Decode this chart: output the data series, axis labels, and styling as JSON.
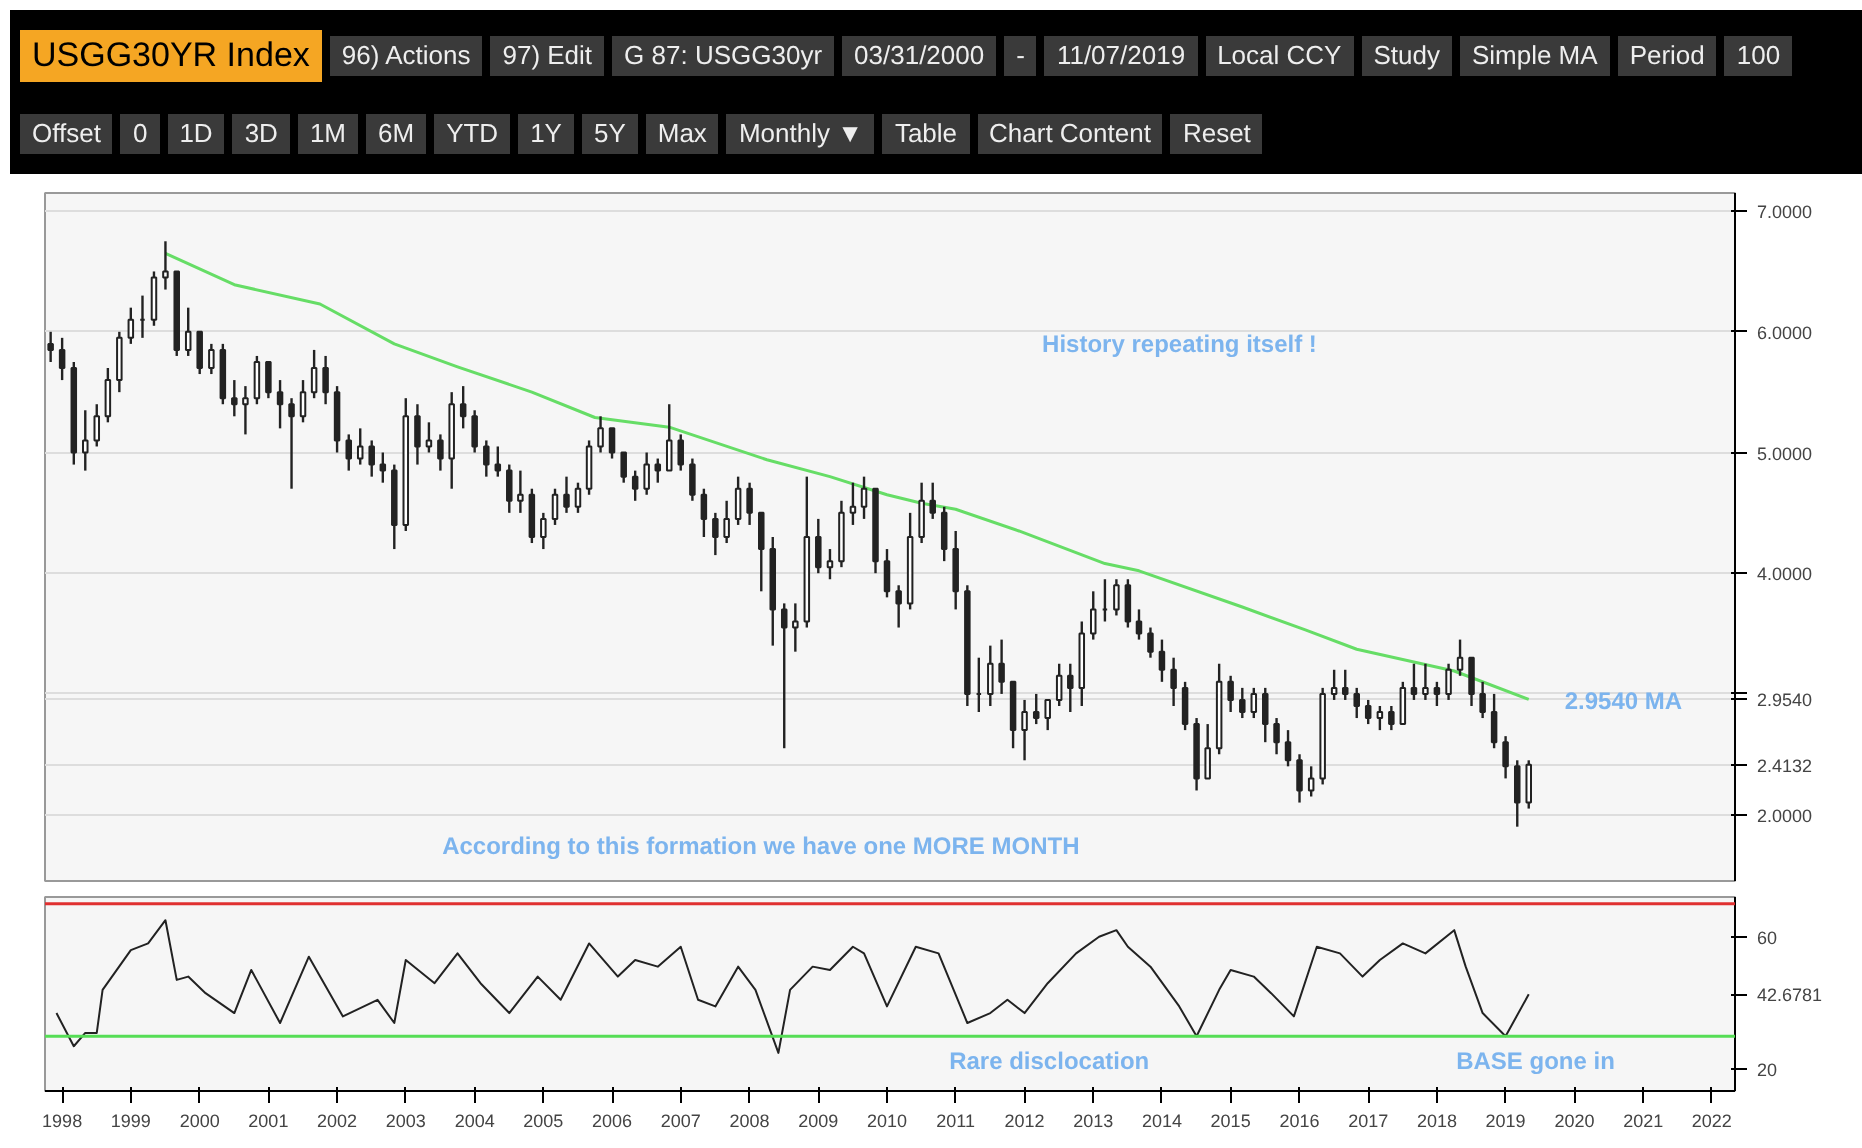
{
  "chart_data": [
    {
      "type": "other",
      "title": "USGG30YR Index",
      "annotations": [
        "96) Actions",
        "97) Edit",
        "G 87: USGG30yr",
        "03/31/2000",
        "-",
        "11/07/2019",
        "Local CCY",
        "Study",
        "Simple MA",
        "Period",
        "100",
        "Offset",
        "0",
        "1D",
        "3D",
        "1M",
        "6M",
        "YTD",
        "1Y",
        "5Y",
        "Max",
        "Monthly ▼",
        "Table",
        "Chart Content",
        "Reset"
      ]
    },
    {
      "type": "candlestick",
      "xlim": [
        "1998-04",
        "2022-11"
      ],
      "ylim": [
        1.45,
        7.15
      ],
      "yticks": [
        {
          "value": 7,
          "label": "7.0000"
        },
        {
          "value": 6,
          "label": "6.0000"
        },
        {
          "value": 5,
          "label": "5.0000"
        },
        {
          "value": 4,
          "label": "4.0000"
        },
        {
          "value": 3,
          "label": null
        },
        {
          "value": 2.954,
          "label": "2.9540"
        },
        {
          "value": 2.4132,
          "label": "2.4132"
        },
        {
          "value": 2,
          "label": "2.0000"
        }
      ],
      "tick_labels": "y",
      "grid": "y",
      "x": [
        "1998-05",
        "1998-07",
        "1998-09",
        "1998-11",
        "1999-01",
        "1999-03",
        "1999-05",
        "1999-07",
        "1999-09",
        "1999-11",
        "2000-01",
        "2000-03",
        "2000-05",
        "2000-07",
        "2000-09",
        "2000-11",
        "2001-01",
        "2001-03",
        "2001-05",
        "2001-07",
        "2001-09",
        "2001-11",
        "2002-01",
        "2002-03",
        "2002-05",
        "2002-07",
        "2002-09",
        "2002-11",
        "2003-01",
        "2003-03",
        "2003-05",
        "2003-07",
        "2003-09",
        "2003-11",
        "2004-01",
        "2004-03",
        "2004-05",
        "2004-07",
        "2004-09",
        "2004-11",
        "2005-01",
        "2005-03",
        "2005-05",
        "2005-07",
        "2005-09",
        "2005-11",
        "2006-01",
        "2006-03",
        "2006-05",
        "2006-07",
        "2006-09",
        "2006-11",
        "2007-01",
        "2007-03",
        "2007-05",
        "2007-07",
        "2007-09",
        "2007-11",
        "2008-01",
        "2008-03",
        "2008-05",
        "2008-07",
        "2008-09",
        "2008-11",
        "2009-01",
        "2009-03",
        "2009-05",
        "2009-07",
        "2009-09",
        "2009-11",
        "2010-01",
        "2010-03",
        "2010-05",
        "2010-07",
        "2010-09",
        "2010-11",
        "2011-01",
        "2011-03",
        "2011-05",
        "2011-07",
        "2011-09",
        "2011-11",
        "2012-01",
        "2012-03",
        "2012-05",
        "2012-07",
        "2012-09",
        "2012-11",
        "2013-01",
        "2013-03",
        "2013-05",
        "2013-07",
        "2013-09",
        "2013-11",
        "2014-01",
        "2014-03",
        "2014-05",
        "2014-07",
        "2014-09",
        "2014-11",
        "2015-01",
        "2015-03",
        "2015-05",
        "2015-07",
        "2015-09",
        "2015-11",
        "2016-01",
        "2016-03",
        "2016-05",
        "2016-07",
        "2016-09",
        "2016-11",
        "2017-01",
        "2017-03",
        "2017-05",
        "2017-07",
        "2017-09",
        "2017-11",
        "2018-01",
        "2018-03",
        "2018-05",
        "2018-07",
        "2018-09",
        "2018-11",
        "2019-01",
        "2019-03",
        "2019-05",
        "2019-07",
        "2019-09",
        "2019-11"
      ],
      "ohlc": [
        [
          5.9,
          6.0,
          5.75,
          5.85
        ],
        [
          5.85,
          5.95,
          5.6,
          5.7
        ],
        [
          5.7,
          5.75,
          4.9,
          5.0
        ],
        [
          5.0,
          5.35,
          4.85,
          5.1
        ],
        [
          5.1,
          5.4,
          5.05,
          5.3
        ],
        [
          5.3,
          5.7,
          5.25,
          5.6
        ],
        [
          5.6,
          6.0,
          5.5,
          5.95
        ],
        [
          5.95,
          6.2,
          5.9,
          6.1
        ],
        [
          6.1,
          6.3,
          5.95,
          6.1
        ],
        [
          6.1,
          6.5,
          6.05,
          6.45
        ],
        [
          6.45,
          6.75,
          6.35,
          6.5
        ],
        [
          6.5,
          6.5,
          5.8,
          5.85
        ],
        [
          5.85,
          6.2,
          5.8,
          6.0
        ],
        [
          6.0,
          6.0,
          5.65,
          5.7
        ],
        [
          5.7,
          5.9,
          5.65,
          5.85
        ],
        [
          5.85,
          5.9,
          5.4,
          5.45
        ],
        [
          5.45,
          5.6,
          5.3,
          5.4
        ],
        [
          5.4,
          5.55,
          5.15,
          5.45
        ],
        [
          5.45,
          5.8,
          5.4,
          5.75
        ],
        [
          5.75,
          5.75,
          5.45,
          5.5
        ],
        [
          5.5,
          5.6,
          5.2,
          5.4
        ],
        [
          5.4,
          5.45,
          4.7,
          5.3
        ],
        [
          5.3,
          5.6,
          5.25,
          5.5
        ],
        [
          5.5,
          5.85,
          5.45,
          5.7
        ],
        [
          5.7,
          5.8,
          5.4,
          5.5
        ],
        [
          5.5,
          5.55,
          5.0,
          5.1
        ],
        [
          5.1,
          5.15,
          4.85,
          4.95
        ],
        [
          4.95,
          5.2,
          4.9,
          5.05
        ],
        [
          5.05,
          5.1,
          4.8,
          4.9
        ],
        [
          4.9,
          5.0,
          4.75,
          4.85
        ],
        [
          4.85,
          4.9,
          4.2,
          4.4
        ],
        [
          4.4,
          5.45,
          4.35,
          5.3
        ],
        [
          5.3,
          5.4,
          4.9,
          5.05
        ],
        [
          5.05,
          5.25,
          5.0,
          5.1
        ],
        [
          5.1,
          5.15,
          4.85,
          4.95
        ],
        [
          4.95,
          5.5,
          4.7,
          5.4
        ],
        [
          5.4,
          5.55,
          5.2,
          5.3
        ],
        [
          5.3,
          5.35,
          5.0,
          5.05
        ],
        [
          5.05,
          5.1,
          4.8,
          4.9
        ],
        [
          4.9,
          5.05,
          4.8,
          4.85
        ],
        [
          4.85,
          4.9,
          4.5,
          4.6
        ],
        [
          4.6,
          4.85,
          4.5,
          4.65
        ],
        [
          4.65,
          4.7,
          4.25,
          4.3
        ],
        [
          4.3,
          4.5,
          4.2,
          4.45
        ],
        [
          4.45,
          4.7,
          4.4,
          4.65
        ],
        [
          4.65,
          4.8,
          4.5,
          4.55
        ],
        [
          4.55,
          4.75,
          4.5,
          4.7
        ],
        [
          4.7,
          5.1,
          4.65,
          5.05
        ],
        [
          5.05,
          5.3,
          5.0,
          5.2
        ],
        [
          5.2,
          5.2,
          4.95,
          5.0
        ],
        [
          5.0,
          5.0,
          4.75,
          4.8
        ],
        [
          4.8,
          4.85,
          4.6,
          4.7
        ],
        [
          4.7,
          5.0,
          4.65,
          4.9
        ],
        [
          4.9,
          4.95,
          4.75,
          4.85
        ],
        [
          4.85,
          5.4,
          4.85,
          5.1
        ],
        [
          5.1,
          5.15,
          4.85,
          4.9
        ],
        [
          4.9,
          4.95,
          4.6,
          4.65
        ],
        [
          4.65,
          4.7,
          4.3,
          4.45
        ],
        [
          4.45,
          4.5,
          4.15,
          4.3
        ],
        [
          4.3,
          4.6,
          4.25,
          4.45
        ],
        [
          4.45,
          4.8,
          4.4,
          4.7
        ],
        [
          4.7,
          4.75,
          4.4,
          4.5
        ],
        [
          4.5,
          4.5,
          3.85,
          4.2
        ],
        [
          4.2,
          4.3,
          3.4,
          3.7
        ],
        [
          3.7,
          3.75,
          2.55,
          3.55
        ],
        [
          3.55,
          3.75,
          3.35,
          3.6
        ],
        [
          3.6,
          4.8,
          3.55,
          4.3
        ],
        [
          4.3,
          4.45,
          4.0,
          4.05
        ],
        [
          4.05,
          4.2,
          3.95,
          4.1
        ],
        [
          4.1,
          4.6,
          4.05,
          4.5
        ],
        [
          4.5,
          4.75,
          4.4,
          4.55
        ],
        [
          4.55,
          4.8,
          4.45,
          4.7
        ],
        [
          4.7,
          4.7,
          4.0,
          4.1
        ],
        [
          4.1,
          4.2,
          3.8,
          3.85
        ],
        [
          3.85,
          3.9,
          3.55,
          3.75
        ],
        [
          3.75,
          4.5,
          3.7,
          4.3
        ],
        [
          4.3,
          4.75,
          4.25,
          4.6
        ],
        [
          4.6,
          4.75,
          4.45,
          4.5
        ],
        [
          4.5,
          4.55,
          4.1,
          4.2
        ],
        [
          4.2,
          4.35,
          3.7,
          3.85
        ],
        [
          3.85,
          3.9,
          2.9,
          3.0
        ],
        [
          3.0,
          3.3,
          2.85,
          3.0
        ],
        [
          3.0,
          3.4,
          2.9,
          3.25
        ],
        [
          3.25,
          3.45,
          3.0,
          3.1
        ],
        [
          3.1,
          3.1,
          2.55,
          2.7
        ],
        [
          2.7,
          2.95,
          2.45,
          2.85
        ],
        [
          2.85,
          3.0,
          2.75,
          2.8
        ],
        [
          2.8,
          2.95,
          2.7,
          2.95
        ],
        [
          2.95,
          3.25,
          2.9,
          3.15
        ],
        [
          3.15,
          3.25,
          2.85,
          3.05
        ],
        [
          3.05,
          3.6,
          2.9,
          3.5
        ],
        [
          3.5,
          3.85,
          3.45,
          3.7
        ],
        [
          3.7,
          3.95,
          3.6,
          3.7
        ],
        [
          3.7,
          3.95,
          3.65,
          3.9
        ],
        [
          3.9,
          3.95,
          3.55,
          3.6
        ],
        [
          3.6,
          3.7,
          3.45,
          3.5
        ],
        [
          3.5,
          3.55,
          3.3,
          3.35
        ],
        [
          3.35,
          3.45,
          3.1,
          3.2
        ],
        [
          3.2,
          3.3,
          2.9,
          3.05
        ],
        [
          3.05,
          3.1,
          2.7,
          2.75
        ],
        [
          2.75,
          2.8,
          2.2,
          2.3
        ],
        [
          2.3,
          2.75,
          2.3,
          2.55
        ],
        [
          2.55,
          3.25,
          2.5,
          3.1
        ],
        [
          3.1,
          3.15,
          2.85,
          2.95
        ],
        [
          2.95,
          3.05,
          2.8,
          2.85
        ],
        [
          2.85,
          3.05,
          2.8,
          3.0
        ],
        [
          3.0,
          3.05,
          2.6,
          2.75
        ],
        [
          2.75,
          2.8,
          2.5,
          2.6
        ],
        [
          2.6,
          2.7,
          2.4,
          2.45
        ],
        [
          2.45,
          2.5,
          2.1,
          2.2
        ],
        [
          2.2,
          2.4,
          2.15,
          2.3
        ],
        [
          2.3,
          3.05,
          2.25,
          3.0
        ],
        [
          3.0,
          3.2,
          2.95,
          3.05
        ],
        [
          3.05,
          3.2,
          2.95,
          3.0
        ],
        [
          3.0,
          3.05,
          2.8,
          2.9
        ],
        [
          2.9,
          2.95,
          2.75,
          2.8
        ],
        [
          2.8,
          2.9,
          2.7,
          2.85
        ],
        [
          2.85,
          2.9,
          2.7,
          2.75
        ],
        [
          2.75,
          3.1,
          2.75,
          3.05
        ],
        [
          3.05,
          3.25,
          2.95,
          3.0
        ],
        [
          3.0,
          3.25,
          2.95,
          3.05
        ],
        [
          3.05,
          3.1,
          2.9,
          3.0
        ],
        [
          3.0,
          3.25,
          2.95,
          3.2
        ],
        [
          3.2,
          3.45,
          3.15,
          3.3
        ],
        [
          3.3,
          3.3,
          2.9,
          3.0
        ],
        [
          3.0,
          3.1,
          2.8,
          2.85
        ],
        [
          2.85,
          3.0,
          2.55,
          2.6
        ],
        [
          2.6,
          2.65,
          2.3,
          2.4
        ],
        [
          2.4,
          2.45,
          1.9,
          2.1
        ],
        [
          2.1,
          2.45,
          2.05,
          2.4132
        ]
      ],
      "series": [
        {
          "type": "line",
          "color": "#66dd66",
          "x": [
            "2000-01",
            "2001-01",
            "2002-04",
            "2003-05",
            "2004-04",
            "2005-05",
            "2006-04",
            "2007-05",
            "2008-10",
            "2009-09",
            "2010-07",
            "2011-01",
            "2011-07",
            "2012-06",
            "2013-09",
            "2014-03",
            "2015-09",
            "2016-08",
            "2017-05",
            "2018-10",
            "2019-11"
          ],
          "values": [
            6.65,
            6.39,
            6.23,
            5.9,
            5.71,
            5.5,
            5.29,
            5.21,
            4.94,
            4.8,
            4.65,
            4.58,
            4.53,
            4.35,
            4.08,
            4.02,
            3.72,
            3.53,
            3.37,
            3.19,
            2.954
          ]
        }
      ],
      "annotations": [
        "History repeating itself !",
        "According to this formation we have one MORE MONTH",
        {
          "text": "2.9540 MA",
          "x": "2019-11",
          "y": 2.954
        }
      ]
    },
    {
      "type": "line",
      "xlim": [
        "1998-04",
        "2022-11"
      ],
      "ylim": [
        13.5,
        72
      ],
      "xticks": [
        {
          "value": "1998-07",
          "label": "1998"
        },
        {
          "value": "1999-07",
          "label": "1999"
        },
        {
          "value": "2000-07",
          "label": "2000"
        },
        {
          "value": "2001-07",
          "label": "2001"
        },
        {
          "value": "2002-07",
          "label": "2002"
        },
        {
          "value": "2003-07",
          "label": "2003"
        },
        {
          "value": "2004-07",
          "label": "2004"
        },
        {
          "value": "2005-07",
          "label": "2005"
        },
        {
          "value": "2006-07",
          "label": "2006"
        },
        {
          "value": "2007-07",
          "label": "2007"
        },
        {
          "value": "2008-07",
          "label": "2008"
        },
        {
          "value": "2009-07",
          "label": "2009"
        },
        {
          "value": "2010-07",
          "label": "2010"
        },
        {
          "value": "2011-07",
          "label": "2011"
        },
        {
          "value": "2012-07",
          "label": "2012"
        },
        {
          "value": "2013-07",
          "label": "2013"
        },
        {
          "value": "2014-07",
          "label": "2014"
        },
        {
          "value": "2015-07",
          "label": "2015"
        },
        {
          "value": "2016-07",
          "label": "2016"
        },
        {
          "value": "2017-07",
          "label": "2017"
        },
        {
          "value": "2018-07",
          "label": "2018"
        },
        {
          "value": "2019-07",
          "label": "2019"
        },
        {
          "value": "2020-07",
          "label": "2020"
        },
        {
          "value": "2021-07",
          "label": "2021"
        },
        {
          "value": "2022-07",
          "label": "2022"
        }
      ],
      "yticks": [
        20,
        {
          "value": 42.6781,
          "label": "42.6781"
        },
        60
      ],
      "x": [
        "1998-06",
        "1998-09",
        "1998-11",
        "1999-01",
        "1999-02",
        "1999-07",
        "1999-10",
        "2000-01",
        "2000-03",
        "2000-05",
        "2000-08",
        "2001-01",
        "2001-04",
        "2001-09",
        "2002-02",
        "2002-08",
        "2003-02",
        "2003-05",
        "2003-07",
        "2003-12",
        "2004-04",
        "2004-08",
        "2005-01",
        "2005-06",
        "2005-10",
        "2006-03",
        "2006-08",
        "2006-11",
        "2007-03",
        "2007-07",
        "2007-10",
        "2008-01",
        "2008-05",
        "2008-08",
        "2008-12",
        "2009-02",
        "2009-06",
        "2009-09",
        "2010-01",
        "2010-03",
        "2010-07",
        "2010-12",
        "2011-04",
        "2011-09",
        "2012-01",
        "2012-04",
        "2012-07",
        "2012-11",
        "2013-04",
        "2013-08",
        "2013-11",
        "2014-01",
        "2014-05",
        "2014-10",
        "2015-01",
        "2015-05",
        "2015-07",
        "2015-11",
        "2016-02",
        "2016-06",
        "2016-10",
        "2017-02",
        "2017-06",
        "2017-09",
        "2018-01",
        "2018-05",
        "2018-10",
        "2018-12",
        "2019-03",
        "2019-07",
        "2019-11"
      ],
      "series": [
        {
          "color": "#222222",
          "values": [
            37,
            27,
            31,
            31,
            44,
            56,
            58,
            65,
            47,
            48,
            43,
            37,
            50,
            34,
            54,
            36,
            41,
            34,
            53,
            46,
            55,
            46,
            37,
            48,
            41,
            58,
            48,
            53,
            51,
            57,
            41,
            39,
            51,
            44,
            25,
            44,
            51,
            50,
            57,
            55,
            39,
            57,
            55,
            34,
            37,
            41,
            37,
            46,
            55,
            60,
            62,
            57,
            51,
            39,
            30,
            44,
            50,
            48,
            43,
            36,
            57,
            55,
            48,
            53,
            58,
            55,
            62,
            51,
            37,
            30,
            42.6781
          ]
        }
      ],
      "ref_lines": [
        {
          "axis": "y",
          "value": 70,
          "color": "#e03030"
        },
        {
          "axis": "y",
          "value": 30,
          "color": "#55dd55"
        }
      ],
      "annotations": [
        "Rare disclocation",
        "BASE gone in"
      ]
    }
  ]
}
